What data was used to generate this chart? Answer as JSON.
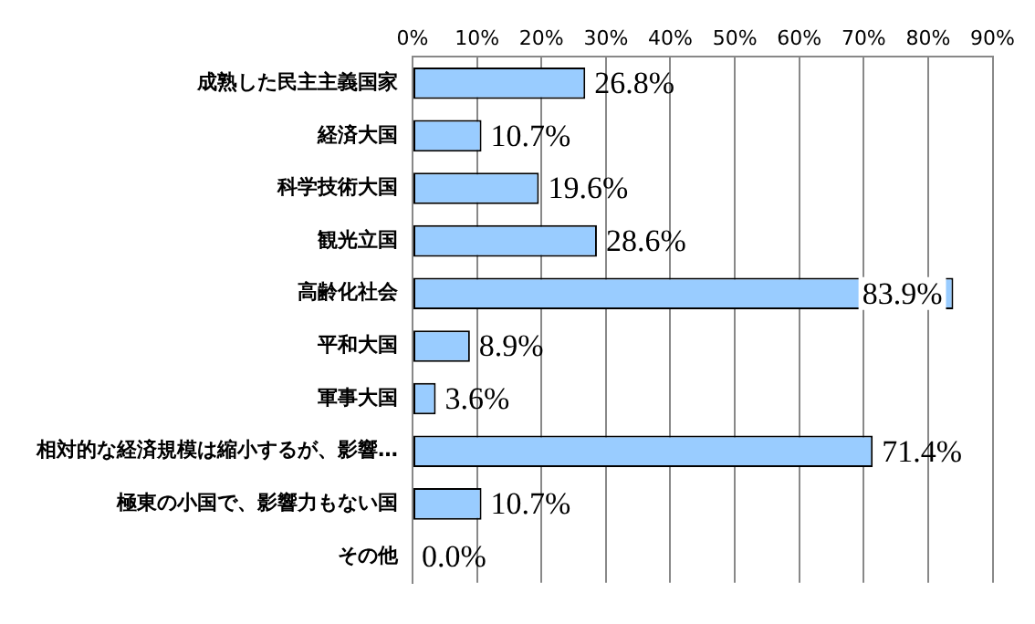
{
  "chart_data": {
    "type": "bar",
    "orientation": "horizontal",
    "categories": [
      "成熟した民主主義国家",
      "経済大国",
      "科学技術大国",
      "観光立国",
      "高齢化社会",
      "平和大国",
      "軍事大国",
      "相対的な経済規模は縮小するが、影響…",
      "極東の小国で、影響力もない国",
      "その他"
    ],
    "values": [
      26.8,
      10.7,
      19.6,
      28.6,
      83.9,
      8.9,
      3.6,
      71.4,
      10.7,
      0.0
    ],
    "value_labels": [
      "26.8%",
      "10.7%",
      "19.6%",
      "28.6%",
      "83.9%",
      "8.9%",
      "3.6%",
      "71.4%",
      "10.7%",
      "0.0%"
    ],
    "color": "#99ccff",
    "xlim": [
      0,
      90
    ],
    "xticks": [
      {
        "value": 0,
        "label": "0%"
      },
      {
        "value": 10,
        "label": "10%"
      },
      {
        "value": 20,
        "label": "20%"
      },
      {
        "value": 30,
        "label": "30%"
      },
      {
        "value": 40,
        "label": "40%"
      },
      {
        "value": 50,
        "label": "50%"
      },
      {
        "value": 60,
        "label": "60%"
      },
      {
        "value": 70,
        "label": "70%"
      },
      {
        "value": 80,
        "label": "80%"
      },
      {
        "value": 90,
        "label": "90%"
      }
    ],
    "grid": "x",
    "legend": false
  }
}
